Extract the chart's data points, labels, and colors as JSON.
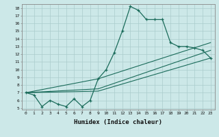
{
  "xlabel": "Humidex (Indice chaleur)",
  "bg_color": "#cce8e8",
  "grid_color": "#aacccc",
  "line_color": "#1a6b5a",
  "xlim": [
    -0.5,
    23.5
  ],
  "ylim": [
    4.8,
    18.5
  ],
  "yticks": [
    5,
    6,
    7,
    8,
    9,
    10,
    11,
    12,
    13,
    14,
    15,
    16,
    17,
    18
  ],
  "xticks": [
    0,
    1,
    2,
    3,
    4,
    5,
    6,
    7,
    8,
    9,
    10,
    11,
    12,
    13,
    14,
    15,
    16,
    17,
    18,
    19,
    20,
    21,
    22,
    23
  ],
  "main_series": {
    "x": [
      0,
      1,
      2,
      3,
      4,
      5,
      6,
      7,
      8,
      9,
      10,
      11,
      12,
      13,
      14,
      15,
      16,
      17,
      18,
      19,
      20,
      21,
      22,
      23
    ],
    "y": [
      7.0,
      6.7,
      5.2,
      6.0,
      5.5,
      5.2,
      6.2,
      5.2,
      6.0,
      8.8,
      10.0,
      12.2,
      15.0,
      18.2,
      17.7,
      16.5,
      16.5,
      16.5,
      13.5,
      13.0,
      13.0,
      12.8,
      12.5,
      11.5
    ]
  },
  "diag_lines": [
    {
      "x": [
        0,
        9,
        23
      ],
      "y": [
        7.0,
        7.2,
        11.5
      ]
    },
    {
      "x": [
        0,
        9,
        23
      ],
      "y": [
        7.0,
        7.5,
        12.5
      ]
    },
    {
      "x": [
        0,
        9,
        23
      ],
      "y": [
        7.0,
        8.8,
        13.5
      ]
    }
  ]
}
